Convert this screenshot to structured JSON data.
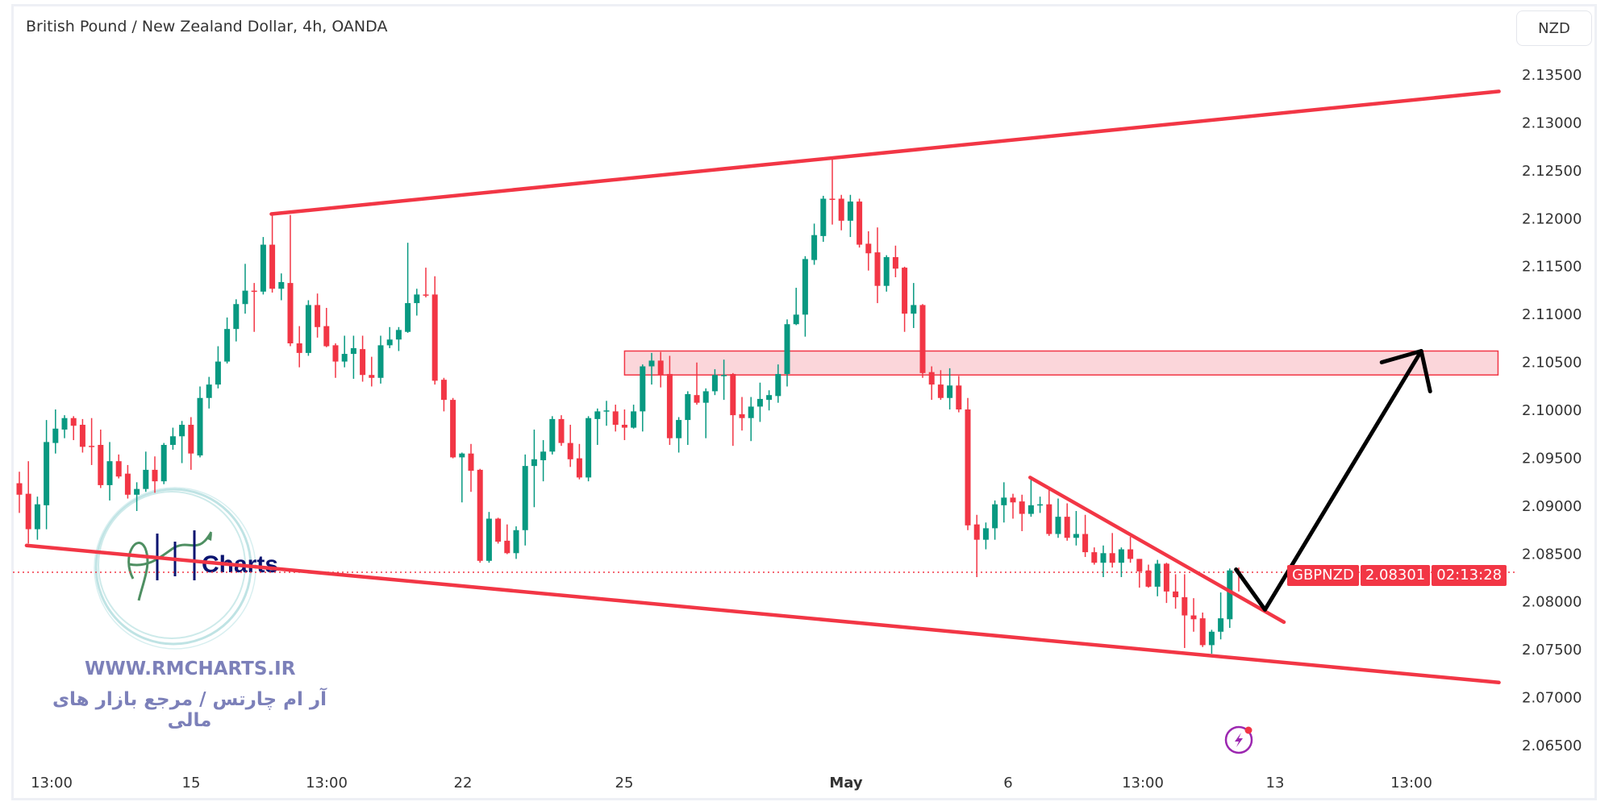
{
  "header": {
    "title": "British Pound / New Zealand Dollar, 4h, OANDA",
    "currency_button": "NZD"
  },
  "price_tag": {
    "symbol": "GBPNZD",
    "price": "2.08301",
    "countdown": "02:13:28"
  },
  "watermark": {
    "logo_text": "Charts",
    "website": "WWW.RMCHARTS.IR",
    "tagline": "آر ام چارتس / مرجع بازار های مالی"
  },
  "icons": {
    "alert": "lightning-circle-icon"
  },
  "colors": {
    "up": "#089981",
    "down": "#f23645",
    "drawing": "#f23645",
    "zone_fill": "#fbd6da",
    "arrow": "#000000",
    "logo_text": "#0b1470",
    "watermark_text": "#7c80b9"
  },
  "chart_data": {
    "type": "candlestick",
    "symbol": "GBPNZD",
    "timeframe": "4h",
    "ylim": [
      2.0625,
      2.1375
    ],
    "y_ticks": [
      "2.13500",
      "2.13000",
      "2.12500",
      "2.12000",
      "2.11500",
      "2.11000",
      "2.10500",
      "2.10000",
      "2.09500",
      "2.09000",
      "2.08500",
      "2.08000",
      "2.07500",
      "2.07000",
      "2.06500"
    ],
    "x_ticks": [
      "13:00",
      "15",
      "13:00",
      "22",
      "25",
      "May",
      "6",
      "13:00",
      "13",
      "13:00"
    ],
    "last_price": 2.08301,
    "ohlc": [
      [
        2.0923,
        2.0935,
        2.0892,
        2.0911
      ],
      [
        2.0912,
        2.0946,
        2.086,
        2.0875
      ],
      [
        2.0875,
        2.0909,
        2.0864,
        2.0901
      ],
      [
        2.09,
        2.0989,
        2.0875,
        2.0966
      ],
      [
        2.0965,
        2.1,
        2.0954,
        2.098
      ],
      [
        2.0979,
        2.0994,
        2.097,
        2.0991
      ],
      [
        2.0991,
        2.0993,
        2.0968,
        2.0983
      ],
      [
        2.0984,
        2.099,
        2.0955,
        2.0961
      ],
      [
        2.0962,
        2.0991,
        2.0942,
        2.0961
      ],
      [
        2.0963,
        2.0979,
        2.0918,
        2.0921
      ],
      [
        2.0921,
        2.0966,
        2.0905,
        2.0946
      ],
      [
        2.0946,
        2.0953,
        2.0928,
        2.093
      ],
      [
        2.0933,
        2.0942,
        2.0907,
        2.0911
      ],
      [
        2.0911,
        2.0924,
        2.0894,
        2.0917
      ],
      [
        2.0917,
        2.0956,
        2.0914,
        2.0937
      ],
      [
        2.0937,
        2.0951,
        2.0913,
        2.0925
      ],
      [
        2.0925,
        2.0965,
        2.0922,
        2.0963
      ],
      [
        2.0963,
        2.0981,
        2.0958,
        2.0972
      ],
      [
        2.0972,
        2.0988,
        2.0944,
        2.0984
      ],
      [
        2.0984,
        2.0992,
        2.0937,
        2.0954
      ],
      [
        2.0952,
        2.1024,
        2.095,
        2.1012
      ],
      [
        2.1012,
        2.1034,
        2.1001,
        2.1026
      ],
      [
        2.1026,
        2.1066,
        2.1022,
        2.105
      ],
      [
        2.105,
        2.1096,
        2.1048,
        2.1084
      ],
      [
        2.1084,
        2.1115,
        2.1071,
        2.111
      ],
      [
        2.111,
        2.1152,
        2.11,
        2.1124
      ],
      [
        2.1124,
        2.1132,
        2.1081,
        2.1123
      ],
      [
        2.1123,
        2.118,
        2.112,
        2.1172
      ],
      [
        2.1172,
        2.1204,
        2.1122,
        2.1126
      ],
      [
        2.1126,
        2.1142,
        2.1114,
        2.1133
      ],
      [
        2.1132,
        2.1203,
        2.1066,
        2.1069
      ],
      [
        2.1069,
        2.1087,
        2.1044,
        2.1059
      ],
      [
        2.1059,
        2.1114,
        2.1056,
        2.1109
      ],
      [
        2.1109,
        2.1121,
        2.1075,
        2.1086
      ],
      [
        2.1087,
        2.1106,
        2.1065,
        2.1066
      ],
      [
        2.1067,
        2.1069,
        2.1033,
        2.105
      ],
      [
        2.105,
        2.1077,
        2.1044,
        2.1058
      ],
      [
        2.1058,
        2.1077,
        2.1032,
        2.1064
      ],
      [
        2.1063,
        2.1077,
        2.1029,
        2.1036
      ],
      [
        2.1036,
        2.1055,
        2.1024,
        2.1033
      ],
      [
        2.1033,
        2.1077,
        2.1027,
        2.1067
      ],
      [
        2.1067,
        2.1086,
        2.1064,
        2.1073
      ],
      [
        2.1073,
        2.1086,
        2.1061,
        2.1083
      ],
      [
        2.1081,
        2.1174,
        2.108,
        2.1111
      ],
      [
        2.1111,
        2.1126,
        2.1098,
        2.112
      ],
      [
        2.112,
        2.1148,
        2.1117,
        2.1119
      ],
      [
        2.112,
        2.1139,
        2.1026,
        2.103
      ],
      [
        2.1031,
        2.1033,
        2.0998,
        2.101
      ],
      [
        2.101,
        2.1012,
        2.0949,
        2.095
      ],
      [
        2.095,
        2.0955,
        2.0903,
        2.0954
      ],
      [
        2.0954,
        2.0964,
        2.0914,
        2.0936
      ],
      [
        2.0937,
        2.0938,
        2.084,
        2.0842
      ],
      [
        2.0842,
        2.0893,
        2.084,
        2.0886
      ],
      [
        2.0886,
        2.0887,
        2.086,
        2.0862
      ],
      [
        2.0863,
        2.088,
        2.0849,
        2.085
      ],
      [
        2.085,
        2.0878,
        2.0844,
        2.0874
      ],
      [
        2.0874,
        2.0953,
        2.0858,
        2.0941
      ],
      [
        2.0941,
        2.0979,
        2.0898,
        2.0948
      ],
      [
        2.0947,
        2.0968,
        2.0925,
        2.0956
      ],
      [
        2.0956,
        2.0993,
        2.0953,
        2.099
      ],
      [
        2.099,
        2.0994,
        2.0962,
        2.0965
      ],
      [
        2.0965,
        2.0984,
        2.094,
        2.0948
      ],
      [
        2.0949,
        2.0964,
        2.0927,
        2.0929
      ],
      [
        2.0929,
        2.0993,
        2.0925,
        2.0991
      ],
      [
        2.099,
        2.1001,
        2.0963,
        2.0998
      ],
      [
        2.0998,
        2.1009,
        2.0983,
        2.0999
      ],
      [
        2.0998,
        2.1005,
        2.0977,
        2.0984
      ],
      [
        2.0984,
        2.1,
        2.0968,
        2.0981
      ],
      [
        2.0981,
        2.1005,
        2.098,
        2.0998
      ],
      [
        2.0998,
        2.1047,
        2.0977,
        2.1045
      ],
      [
        2.1045,
        2.1059,
        2.1026,
        2.1051
      ],
      [
        2.1051,
        2.106,
        2.1023,
        2.1036
      ],
      [
        2.1037,
        2.1056,
        2.0963,
        2.097
      ],
      [
        2.097,
        2.0992,
        2.0955,
        2.0989
      ],
      [
        2.0989,
        2.1019,
        2.0963,
        2.1016
      ],
      [
        2.1015,
        2.1049,
        2.1005,
        2.1007
      ],
      [
        2.1007,
        2.1022,
        2.097,
        2.1019
      ],
      [
        2.1019,
        2.1042,
        2.1015,
        2.1036
      ],
      [
        2.1035,
        2.1052,
        2.101,
        2.1036
      ],
      [
        2.1037,
        2.1038,
        2.0962,
        2.0994
      ],
      [
        2.0995,
        2.1013,
        2.0978,
        2.0991
      ],
      [
        2.0991,
        2.1013,
        2.0967,
        2.1003
      ],
      [
        2.1003,
        2.1028,
        2.0987,
        2.1011
      ],
      [
        2.101,
        2.102,
        2.0999,
        2.1015
      ],
      [
        2.1014,
        2.1047,
        2.1007,
        2.1037
      ],
      [
        2.1037,
        2.1094,
        2.1024,
        2.1089
      ],
      [
        2.1089,
        2.1127,
        2.1088,
        2.1099
      ],
      [
        2.1099,
        2.116,
        2.1076,
        2.1157
      ],
      [
        2.1156,
        2.1194,
        2.1151,
        2.1182
      ],
      [
        2.1181,
        2.1223,
        2.1175,
        2.122
      ],
      [
        2.122,
        2.1262,
        2.1193,
        2.1219
      ],
      [
        2.122,
        2.1224,
        2.1187,
        2.1197
      ],
      [
        2.1197,
        2.1224,
        2.118,
        2.1217
      ],
      [
        2.1217,
        2.122,
        2.1169,
        2.1172
      ],
      [
        2.1173,
        2.1186,
        2.1145,
        2.1163
      ],
      [
        2.1164,
        2.119,
        2.1111,
        2.1129
      ],
      [
        2.1129,
        2.1161,
        2.1123,
        2.1159
      ],
      [
        2.1159,
        2.1171,
        2.1138,
        2.1147
      ],
      [
        2.1148,
        2.1149,
        2.1081,
        2.11
      ],
      [
        2.11,
        2.1132,
        2.1085,
        2.1109
      ],
      [
        2.1109,
        2.111,
        2.1033,
        2.1038
      ],
      [
        2.1039,
        2.1045,
        2.101,
        2.1026
      ],
      [
        2.1026,
        2.1041,
        2.101,
        2.1012
      ],
      [
        2.1012,
        2.1043,
        2.1,
        2.1025
      ],
      [
        2.1025,
        2.1035,
        2.0997,
        2.1
      ],
      [
        2.1,
        2.1012,
        2.0874,
        2.0879
      ],
      [
        2.088,
        2.089,
        2.0825,
        2.0864
      ],
      [
        2.0864,
        2.0882,
        2.0854,
        2.0876
      ],
      [
        2.0876,
        2.0905,
        2.0864,
        2.0901
      ],
      [
        2.09,
        2.0924,
        2.0882,
        2.0908
      ],
      [
        2.0908,
        2.0912,
        2.0886,
        2.0903
      ],
      [
        2.0904,
        2.0911,
        2.0873,
        2.0891
      ],
      [
        2.0891,
        2.0927,
        2.0888,
        2.09
      ],
      [
        2.0901,
        2.0909,
        2.0892,
        2.0901
      ],
      [
        2.0901,
        2.0916,
        2.0868,
        2.087
      ],
      [
        2.087,
        2.0907,
        2.0866,
        2.0888
      ],
      [
        2.0888,
        2.0902,
        2.0863,
        2.0866
      ],
      [
        2.0866,
        2.0894,
        2.0858,
        2.087
      ],
      [
        2.087,
        2.089,
        2.0846,
        2.0851
      ],
      [
        2.0851,
        2.0856,
        2.0838,
        2.084
      ],
      [
        2.084,
        2.0858,
        2.0825,
        2.085
      ],
      [
        2.085,
        2.0871,
        2.0835,
        2.084
      ],
      [
        2.084,
        2.0856,
        2.0825,
        2.0854
      ],
      [
        2.0854,
        2.0867,
        2.084,
        2.0844
      ],
      [
        2.0844,
        2.0844,
        2.0814,
        2.0831
      ],
      [
        2.0832,
        2.0838,
        2.0814,
        2.0815
      ],
      [
        2.0815,
        2.0843,
        2.0805,
        2.0839
      ],
      [
        2.0839,
        2.084,
        2.0798,
        2.081
      ],
      [
        2.081,
        2.0828,
        2.0792,
        2.0804
      ],
      [
        2.0804,
        2.0828,
        2.0751,
        2.0785
      ],
      [
        2.0785,
        2.0803,
        2.0768,
        2.0781
      ],
      [
        2.0782,
        2.0788,
        2.0752,
        2.0754
      ],
      [
        2.0754,
        2.077,
        2.0745,
        2.0768
      ],
      [
        2.0768,
        2.0809,
        2.076,
        2.0782
      ],
      [
        2.0781,
        2.0834,
        2.0772,
        2.0832
      ],
      [
        2.0831,
        2.0835,
        2.081,
        2.083
      ]
    ],
    "drawings": {
      "channel_upper": [
        [
          27.9,
          2.1204
        ],
        [
          163.8,
          2.1332
        ]
      ],
      "channel_lower": [
        [
          0.8,
          2.0858
        ],
        [
          163.8,
          2.0715
        ]
      ],
      "resistance_zone": {
        "from_bar": 67.0,
        "to_bar": 163.7,
        "top": 2.1061,
        "bottom": 2.1036
      },
      "descending_trendline": [
        [
          111.9,
          2.0929
        ],
        [
          140.0,
          2.0778
        ]
      ],
      "projection_arrow": [
        [
          134.7,
          2.0833
        ],
        [
          137.9,
          2.0791
        ],
        [
          155.2,
          2.1061
        ]
      ]
    }
  }
}
